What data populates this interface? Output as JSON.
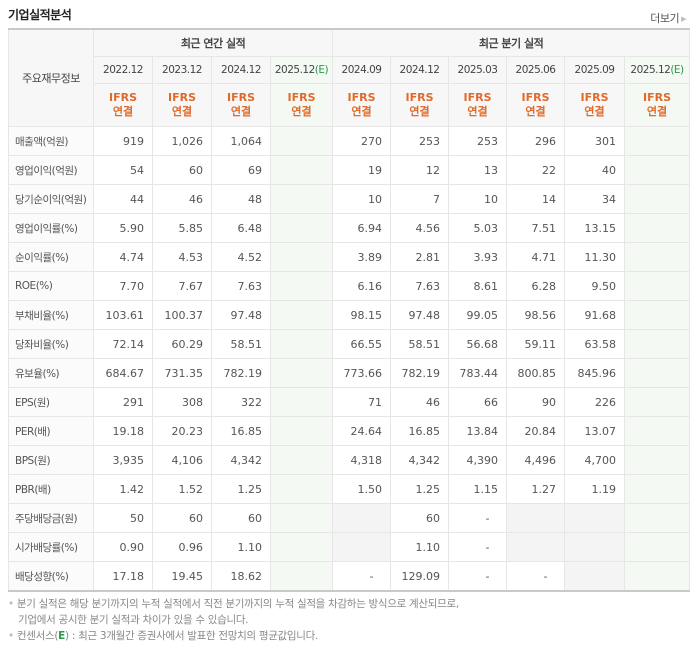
{
  "header": {
    "title": "기업실적분석",
    "more_label": "더보기"
  },
  "table": {
    "row_header": "주요재무정보",
    "groups": {
      "annual": "최근 연간 실적",
      "quarterly": "최근 분기 실적"
    },
    "annual_dates": [
      "2022.12",
      "2023.12",
      "2024.12",
      "2025.12"
    ],
    "quarterly_dates": [
      "2024.09",
      "2024.12",
      "2025.03",
      "2025.06",
      "2025.09",
      "2025.12"
    ],
    "estimate_marker": "(E)",
    "ifrs_line1": "IFRS",
    "ifrs_line2": "연결",
    "rows": [
      {
        "label": "매출액(억원)",
        "annual": [
          "919",
          "1,026",
          "1,064",
          ""
        ],
        "quarterly": [
          "270",
          "253",
          "253",
          "296",
          "301",
          ""
        ]
      },
      {
        "label": "영업이익(억원)",
        "annual": [
          "54",
          "60",
          "69",
          ""
        ],
        "quarterly": [
          "19",
          "12",
          "13",
          "22",
          "40",
          ""
        ]
      },
      {
        "label": "당기순이익(억원)",
        "annual": [
          "44",
          "46",
          "48",
          ""
        ],
        "quarterly": [
          "10",
          "7",
          "10",
          "14",
          "34",
          ""
        ]
      },
      {
        "label": "영업이익률(%)",
        "annual": [
          "5.90",
          "5.85",
          "6.48",
          ""
        ],
        "quarterly": [
          "6.94",
          "4.56",
          "5.03",
          "7.51",
          "13.15",
          ""
        ]
      },
      {
        "label": "순이익률(%)",
        "annual": [
          "4.74",
          "4.53",
          "4.52",
          ""
        ],
        "quarterly": [
          "3.89",
          "2.81",
          "3.93",
          "4.71",
          "11.30",
          ""
        ]
      },
      {
        "label": "ROE(%)",
        "annual": [
          "7.70",
          "7.67",
          "7.63",
          ""
        ],
        "quarterly": [
          "6.16",
          "7.63",
          "8.61",
          "6.28",
          "9.50",
          ""
        ]
      },
      {
        "label": "부채비율(%)",
        "annual": [
          "103.61",
          "100.37",
          "97.48",
          ""
        ],
        "quarterly": [
          "98.15",
          "97.48",
          "99.05",
          "98.56",
          "91.68",
          ""
        ]
      },
      {
        "label": "당좌비율(%)",
        "annual": [
          "72.14",
          "60.29",
          "58.51",
          ""
        ],
        "quarterly": [
          "66.55",
          "58.51",
          "56.68",
          "59.11",
          "63.58",
          ""
        ]
      },
      {
        "label": "유보율(%)",
        "annual": [
          "684.67",
          "731.35",
          "782.19",
          ""
        ],
        "quarterly": [
          "773.66",
          "782.19",
          "783.44",
          "800.85",
          "845.96",
          ""
        ]
      },
      {
        "label": "EPS(원)",
        "annual": [
          "291",
          "308",
          "322",
          ""
        ],
        "quarterly": [
          "71",
          "46",
          "66",
          "90",
          "226",
          ""
        ]
      },
      {
        "label": "PER(배)",
        "annual": [
          "19.18",
          "20.23",
          "16.85",
          ""
        ],
        "quarterly": [
          "24.64",
          "16.85",
          "13.84",
          "20.84",
          "13.07",
          ""
        ]
      },
      {
        "label": "BPS(원)",
        "annual": [
          "3,935",
          "4,106",
          "4,342",
          ""
        ],
        "quarterly": [
          "4,318",
          "4,342",
          "4,390",
          "4,496",
          "4,700",
          ""
        ]
      },
      {
        "label": "PBR(배)",
        "annual": [
          "1.42",
          "1.52",
          "1.25",
          ""
        ],
        "quarterly": [
          "1.50",
          "1.25",
          "1.15",
          "1.27",
          "1.19",
          ""
        ]
      },
      {
        "label": "주당배당금(원)",
        "annual": [
          "50",
          "60",
          "60",
          ""
        ],
        "quarterly": [
          "",
          "60",
          "-",
          "",
          "",
          ""
        ]
      },
      {
        "label": "시가배당률(%)",
        "annual": [
          "0.90",
          "0.96",
          "1.10",
          ""
        ],
        "quarterly": [
          "",
          "1.10",
          "-",
          "",
          "",
          ""
        ]
      },
      {
        "label": "배당성향(%)",
        "annual": [
          "17.18",
          "19.45",
          "18.62",
          ""
        ],
        "quarterly": [
          "-",
          "129.09",
          "-",
          "-",
          "",
          ""
        ]
      }
    ]
  },
  "notes": {
    "line1": "분기 실적은 해당 분기까지의 누적 실적에서 직전 분기까지의 누적 실적을 차감하는 방식으로 계산되므로,",
    "line2": "기업에서 공시한 분기 실적과 차이가 있을 수 있습니다.",
    "line3_prefix": "컨센서스(",
    "line3_e": "E",
    "line3_suffix": ") : 최근 3개월간 증권사에서 발표한 전망치의 평균값입니다."
  }
}
